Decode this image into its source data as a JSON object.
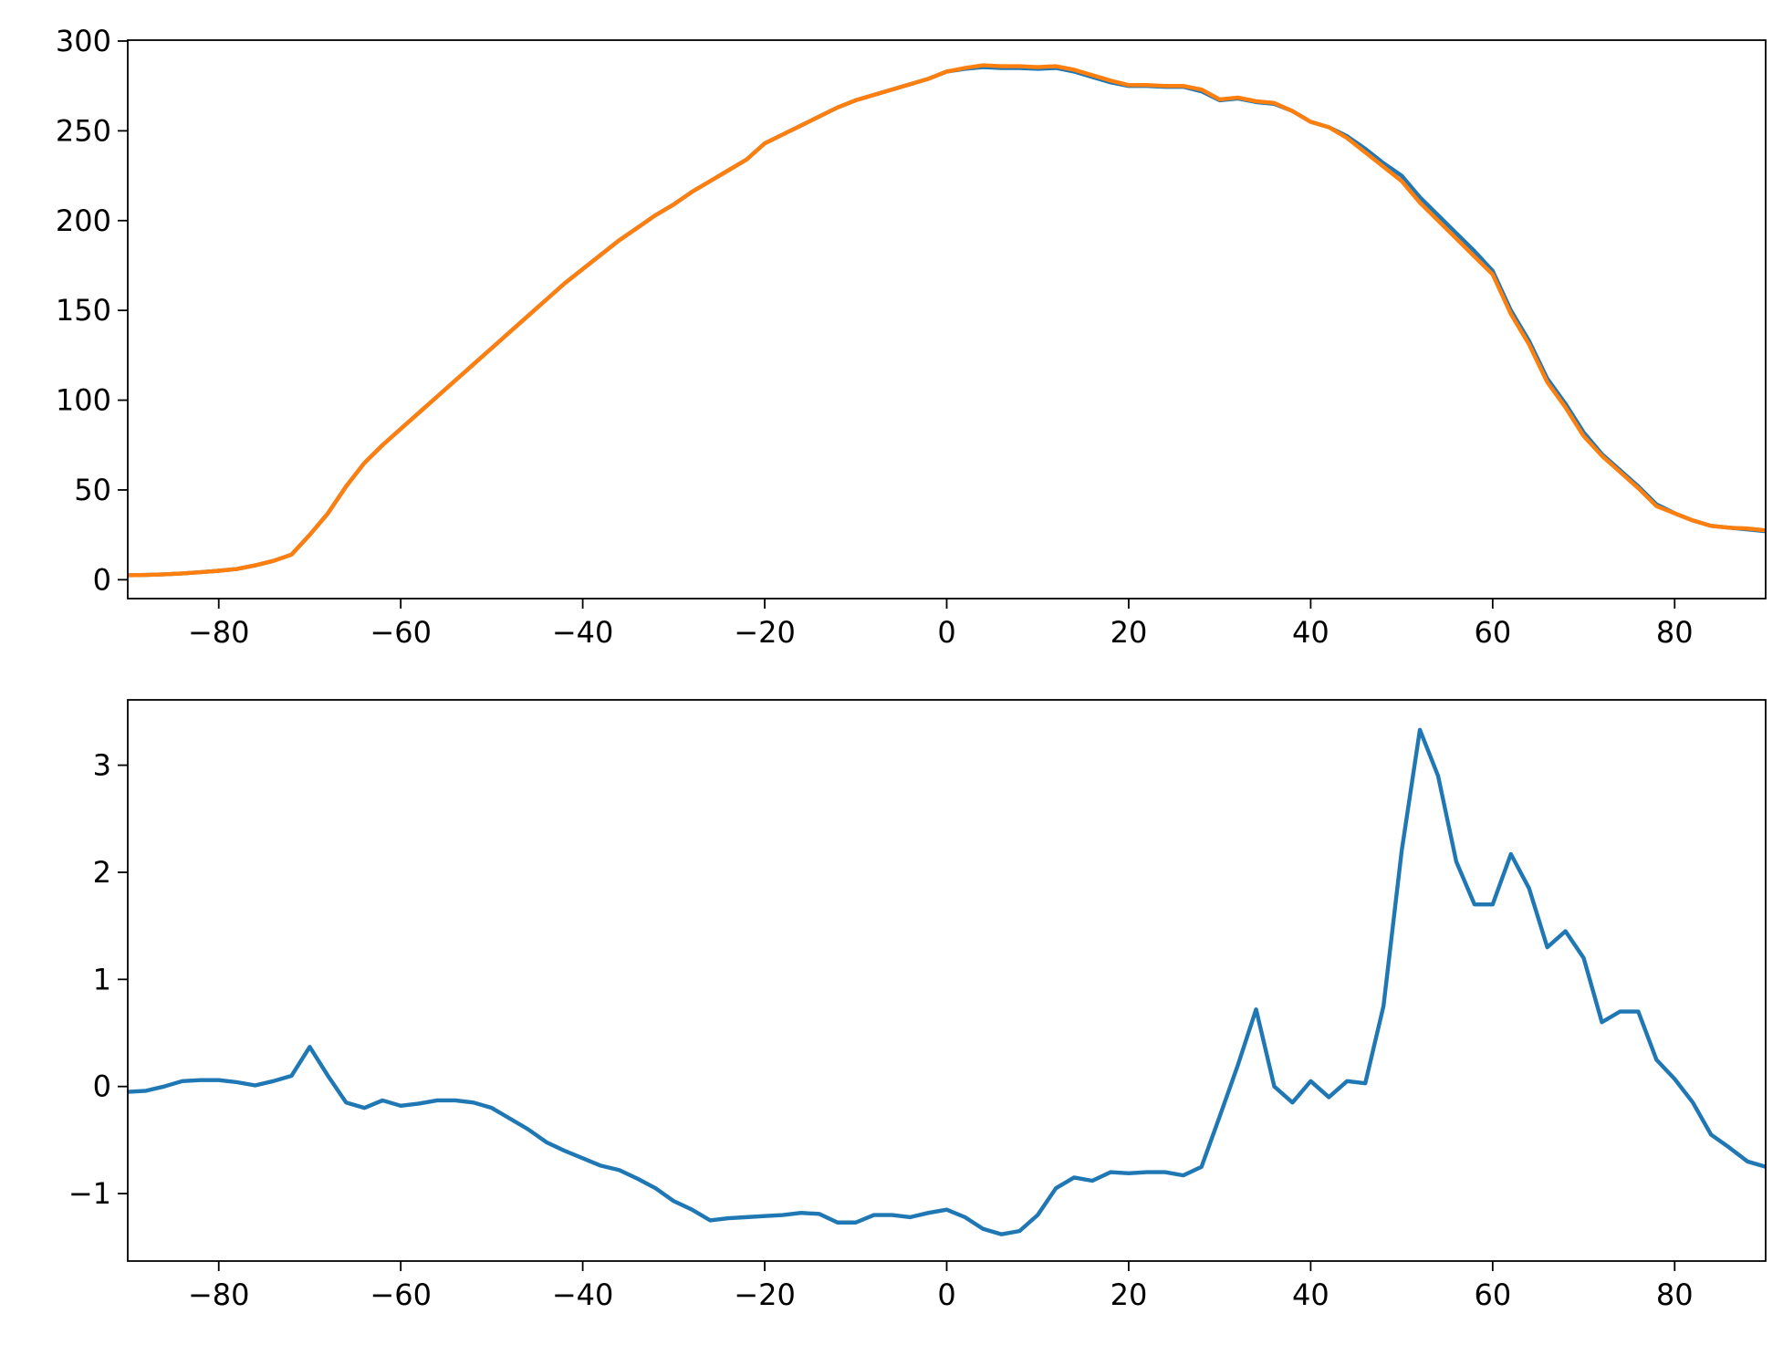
{
  "chart_data": [
    {
      "type": "line",
      "x": [
        -90,
        -88,
        -86,
        -84,
        -82,
        -80,
        -78,
        -76,
        -74,
        -72,
        -70,
        -68,
        -66,
        -64,
        -62,
        -60,
        -58,
        -56,
        -54,
        -52,
        -50,
        -48,
        -46,
        -44,
        -42,
        -40,
        -38,
        -36,
        -34,
        -32,
        -30,
        -28,
        -26,
        -24,
        -22,
        -20,
        -18,
        -16,
        -14,
        -12,
        -10,
        -8,
        -6,
        -4,
        -2,
        0,
        2,
        4,
        6,
        8,
        10,
        12,
        14,
        16,
        18,
        20,
        22,
        24,
        26,
        28,
        30,
        32,
        34,
        36,
        38,
        40,
        42,
        44,
        46,
        48,
        50,
        52,
        54,
        56,
        58,
        60,
        62,
        64,
        66,
        68,
        70,
        72,
        74,
        76,
        78,
        80,
        82,
        84,
        86,
        88,
        90
      ],
      "series": [
        {
          "color": "#1f77b4",
          "values": [
            2.5,
            2.7,
            3,
            3.5,
            4.2,
            5,
            6,
            8,
            10.5,
            14,
            25,
            37,
            52,
            65,
            75,
            84,
            93,
            102,
            111,
            120,
            129,
            138,
            147,
            156,
            165,
            173,
            181,
            189,
            196,
            203,
            209,
            216,
            222,
            228,
            234,
            243,
            248,
            253,
            258,
            263,
            267,
            270,
            273,
            276,
            279,
            283,
            284.5,
            285.5,
            285,
            285,
            284.5,
            285,
            283,
            280,
            277,
            275,
            275,
            274.5,
            274.5,
            272,
            267,
            268,
            266,
            265,
            261,
            255,
            252,
            247,
            240,
            232,
            225,
            213,
            203,
            193,
            183,
            172,
            150,
            133,
            112,
            98,
            82,
            70,
            61,
            52,
            42,
            37,
            33,
            30,
            29,
            28,
            27
          ]
        },
        {
          "color": "#ff7f0e",
          "values": [
            2.5,
            2.7,
            3,
            3.5,
            4.2,
            5,
            6,
            8,
            10.5,
            14,
            25,
            37,
            52,
            65,
            75,
            84,
            93,
            102,
            111,
            120,
            129,
            138,
            147,
            156,
            165,
            173,
            181,
            189,
            196,
            203,
            209,
            216,
            222,
            228,
            234,
            243,
            248,
            253,
            258,
            263,
            267,
            270,
            273,
            276,
            279,
            283,
            285,
            286.5,
            286,
            286,
            285.5,
            286,
            284,
            281,
            278,
            275.5,
            275.5,
            275,
            275,
            273,
            267.5,
            268.5,
            266.5,
            265.5,
            261,
            255,
            252,
            246,
            238,
            230,
            222,
            210,
            200,
            190,
            180,
            170,
            148,
            131,
            110,
            96,
            80,
            69,
            60,
            51,
            41,
            37,
            33,
            30,
            29,
            28.5,
            27.5
          ]
        }
      ],
      "xlim": [
        -90,
        90
      ],
      "xticks": [
        {
          "value": -80,
          "label": "−80"
        },
        {
          "value": -60,
          "label": "−60"
        },
        {
          "value": -40,
          "label": "−40"
        },
        {
          "value": -20,
          "label": "−20"
        },
        0,
        20,
        40,
        60,
        80
      ],
      "ylim": [
        -10.5,
        300.5
      ],
      "yticks": [
        0,
        50,
        100,
        150,
        200,
        250,
        300
      ]
    },
    {
      "type": "line",
      "x": [
        -90,
        -88,
        -86,
        -84,
        -82,
        -80,
        -78,
        -76,
        -74,
        -72,
        -70,
        -68,
        -66,
        -64,
        -62,
        -60,
        -58,
        -56,
        -54,
        -52,
        -50,
        -48,
        -46,
        -44,
        -42,
        -40,
        -38,
        -36,
        -34,
        -32,
        -30,
        -28,
        -26,
        -24,
        -22,
        -20,
        -18,
        -16,
        -14,
        -12,
        -10,
        -8,
        -6,
        -4,
        -2,
        0,
        2,
        4,
        6,
        8,
        10,
        12,
        14,
        16,
        18,
        20,
        22,
        24,
        26,
        28,
        30,
        32,
        34,
        36,
        38,
        40,
        42,
        44,
        46,
        48,
        50,
        52,
        54,
        56,
        58,
        60,
        62,
        64,
        66,
        68,
        70,
        72,
        74,
        76,
        78,
        80,
        82,
        84,
        86,
        88,
        90
      ],
      "series": [
        {
          "color": "#1f77b4",
          "values": [
            -0.05,
            -0.04,
            0.0,
            0.05,
            0.06,
            0.06,
            0.04,
            0.01,
            0.05,
            0.1,
            0.37,
            0.1,
            -0.15,
            -0.2,
            -0.13,
            -0.18,
            -0.16,
            -0.13,
            -0.13,
            -0.15,
            -0.2,
            -0.3,
            -0.4,
            -0.52,
            -0.6,
            -0.67,
            -0.74,
            -0.78,
            -0.86,
            -0.95,
            -1.07,
            -1.15,
            -1.25,
            -1.23,
            -1.22,
            -1.21,
            -1.2,
            -1.18,
            -1.19,
            -1.27,
            -1.27,
            -1.2,
            -1.2,
            -1.22,
            -1.18,
            -1.15,
            -1.22,
            -1.33,
            -1.38,
            -1.35,
            -1.2,
            -0.95,
            -0.85,
            -0.88,
            -0.8,
            -0.81,
            -0.8,
            -0.8,
            -0.83,
            -0.75,
            -0.28,
            0.2,
            0.72,
            0.0,
            -0.15,
            0.05,
            -0.1,
            0.05,
            0.03,
            0.75,
            2.2,
            3.33,
            2.9,
            2.1,
            1.7,
            1.7,
            2.17,
            1.85,
            1.3,
            1.45,
            1.2,
            0.6,
            0.7,
            0.7,
            0.25,
            0.07,
            -0.15,
            -0.45,
            -0.57,
            -0.7,
            -0.75
          ]
        }
      ],
      "xlim": [
        -90,
        90
      ],
      "xticks": [
        {
          "value": -80,
          "label": "−80"
        },
        {
          "value": -60,
          "label": "−60"
        },
        {
          "value": -40,
          "label": "−40"
        },
        {
          "value": -20,
          "label": "−20"
        },
        0,
        20,
        40,
        60,
        80
      ],
      "ylim": [
        -1.63,
        3.61
      ],
      "yticks": [
        {
          "value": -1,
          "label": "−1"
        },
        0,
        1,
        2,
        3
      ]
    }
  ]
}
